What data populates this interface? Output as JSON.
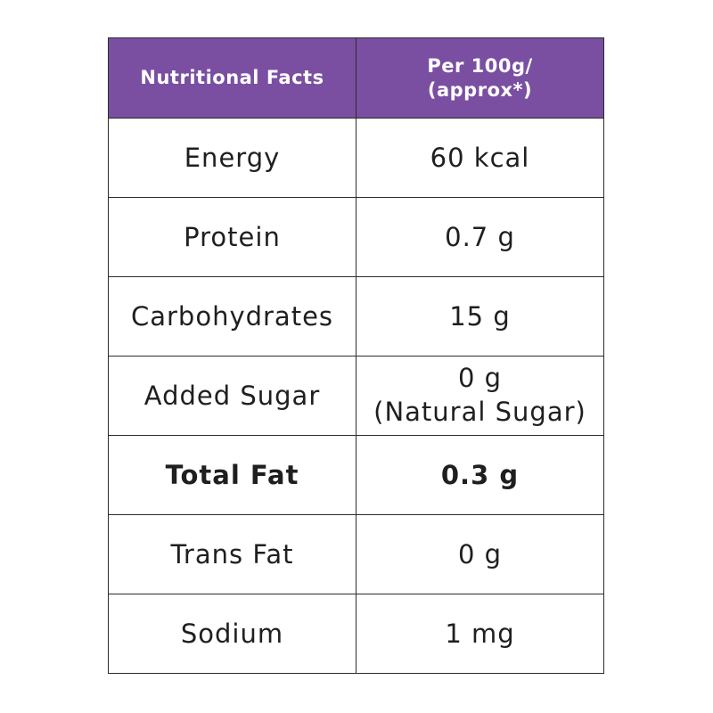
{
  "header": {
    "left_label": "Nutritional Facts",
    "right_line1": "Per 100g/",
    "right_line2": "(approx*)"
  },
  "rows": [
    {
      "label": "Energy",
      "value": "60 kcal"
    },
    {
      "label": "Protein",
      "value": "0.7 g"
    },
    {
      "label": "Carbohydrates",
      "value": "15 g"
    },
    {
      "label": "Added Sugar",
      "value": "0 g",
      "value_note": "(Natural Sugar)"
    },
    {
      "label": "Total Fat",
      "value": "0.3 g"
    },
    {
      "label": "Trans Fat",
      "value": "0 g"
    },
    {
      "label": "Sodium",
      "value": "1 mg"
    }
  ],
  "colors": {
    "header_bg": "#7a4fa1",
    "header_text": "#ffffff",
    "border": "#2b2b2b"
  }
}
